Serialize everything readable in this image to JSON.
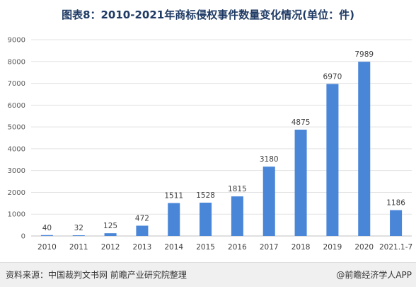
{
  "chart_data": {
    "type": "bar",
    "title": "图表8：2010-2021年商标侵权事件数量变化情况(单位：件)",
    "categories": [
      "2010",
      "2011",
      "2012",
      "2013",
      "2014",
      "2015",
      "2016",
      "2017",
      "2018",
      "2019",
      "2020",
      "2021.1-7"
    ],
    "values": [
      40,
      32,
      125,
      472,
      1511,
      1528,
      1815,
      3180,
      4875,
      6970,
      7989,
      1186
    ],
    "data_labels": [
      "40",
      "32",
      "125",
      "472",
      "1511",
      "1528",
      "1815",
      "3180",
      "4875",
      "6970",
      "7989",
      "1186"
    ],
    "yticks": [
      "0",
      "1000",
      "2000",
      "3000",
      "4000",
      "5000",
      "6000",
      "7000",
      "8000",
      "9000"
    ],
    "ylim": [
      0,
      9000
    ],
    "grid": true,
    "bar_color": "#4a86d8",
    "xlabel": "",
    "ylabel": ""
  },
  "footer": {
    "source": "资料来源：中国裁判文书网 前瞻产业研究院整理",
    "credit": "@前瞻经济学人APP"
  }
}
